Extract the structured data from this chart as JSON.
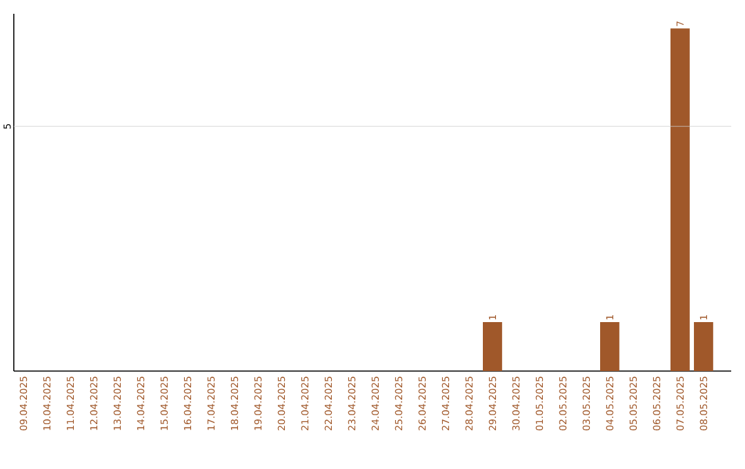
{
  "chart_data": {
    "type": "bar",
    "categories": [
      "09.04.2025",
      "10.04.2025",
      "11.04.2025",
      "12.04.2025",
      "13.04.2025",
      "14.04.2025",
      "15.04.2025",
      "16.04.2025",
      "17.04.2025",
      "18.04.2025",
      "19.04.2025",
      "20.04.2025",
      "21.04.2025",
      "22.04.2025",
      "23.04.2025",
      "24.04.2025",
      "25.04.2025",
      "26.04.2025",
      "27.04.2025",
      "28.04.2025",
      "29.04.2025",
      "30.04.2025",
      "01.05.2025",
      "02.05.2025",
      "03.05.2025",
      "04.05.2025",
      "05.05.2025",
      "06.05.2025",
      "07.05.2025",
      "08.05.2025"
    ],
    "values": [
      null,
      null,
      null,
      null,
      null,
      null,
      null,
      null,
      null,
      null,
      null,
      null,
      null,
      null,
      null,
      null,
      null,
      null,
      null,
      null,
      1,
      null,
      null,
      null,
      null,
      1,
      null,
      null,
      7,
      1
    ],
    "data_labels": true,
    "ylim": [
      0,
      7.3
    ],
    "color": "#a0582a",
    "ref_lines": [
      {
        "axis": "y",
        "value": 5,
        "label": "5",
        "color": "#cccccc"
      }
    ]
  }
}
